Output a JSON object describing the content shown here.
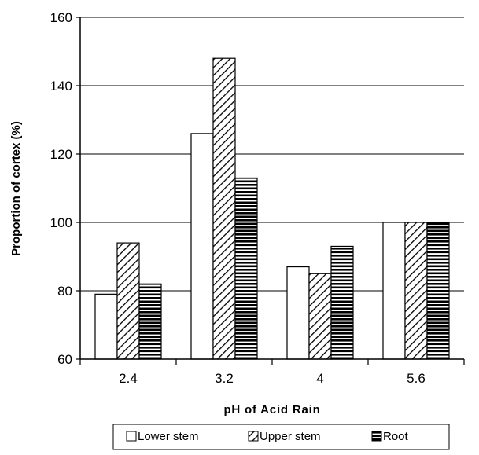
{
  "chart_data": {
    "type": "bar",
    "title": "",
    "xlabel": "pH of Acid Rain",
    "ylabel": "Proportion of cortex (%)",
    "categories": [
      "2.4",
      "3.2",
      "4",
      "5.6"
    ],
    "ylim": [
      60,
      160
    ],
    "yticks": [
      60,
      80,
      100,
      120,
      140,
      160
    ],
    "grid": "horizontal",
    "legend_position": "bottom",
    "series": [
      {
        "name": "Lower stem",
        "values": [
          79,
          126,
          87,
          100
        ],
        "fill": "white"
      },
      {
        "name": "Upper stem",
        "values": [
          94,
          148,
          85,
          100
        ],
        "fill": "diagonal-hatch"
      },
      {
        "name": "Root",
        "values": [
          82,
          113,
          93,
          100
        ],
        "fill": "horizontal-stripes"
      }
    ],
    "colors": {
      "line": "#000000",
      "background": "#ffffff"
    }
  }
}
